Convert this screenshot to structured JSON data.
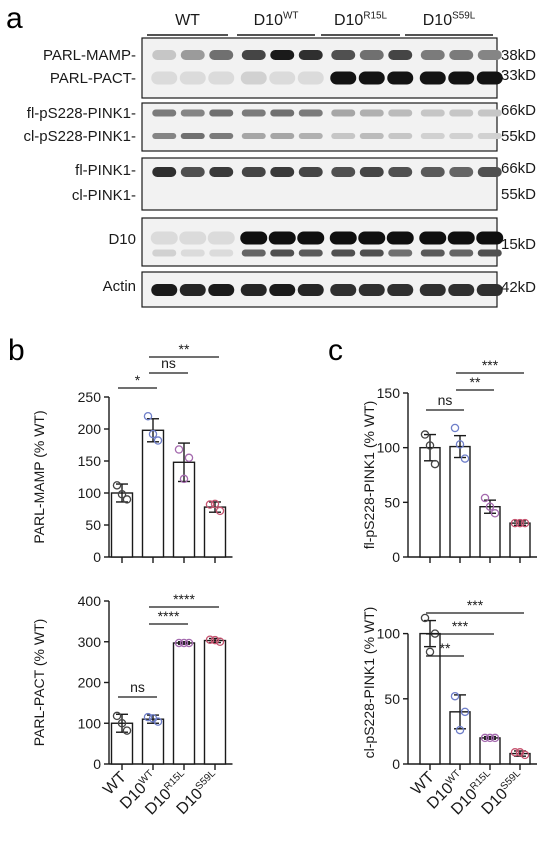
{
  "panel_letters": {
    "a": "a",
    "b": "b",
    "c": "c"
  },
  "blot": {
    "groups": [
      {
        "base": "WT",
        "sup": ""
      },
      {
        "base": "D10",
        "sup": "WT"
      },
      {
        "base": "D10",
        "sup": "R15L"
      },
      {
        "base": "D10",
        "sup": "S59L"
      }
    ],
    "rows": [
      {
        "left_labels": [
          "PARL-MAMP-",
          "PARL-PACT-"
        ],
        "right_labels": [
          "38kD",
          "33kD"
        ]
      },
      {
        "left_labels": [
          "fl-pS228-PINK1-",
          "cl-pS228-PINK1-"
        ],
        "right_labels": [
          "66kD",
          "55kD"
        ]
      },
      {
        "left_labels": [
          "fl-PINK1-",
          "cl-PINK1-"
        ],
        "right_labels": [
          "66kD",
          "55kD"
        ]
      },
      {
        "left_labels": [
          "D10"
        ],
        "right_labels": [
          "15kD"
        ]
      },
      {
        "left_labels": [
          "Actin"
        ],
        "right_labels": [
          "42kD"
        ]
      }
    ],
    "lane_intensity": {
      "mamp": [
        0.15,
        0.35,
        0.55,
        0.75,
        0.95,
        0.85,
        0.7,
        0.55,
        0.75,
        0.5,
        0.5,
        0.45
      ],
      "pact": [
        0.05,
        0.05,
        0.05,
        0.1,
        0.05,
        0.05,
        0.98,
        0.98,
        0.98,
        0.98,
        0.98,
        0.98
      ],
      "fl_ps228": [
        0.5,
        0.45,
        0.55,
        0.5,
        0.55,
        0.5,
        0.3,
        0.25,
        0.2,
        0.15,
        0.15,
        0.15
      ],
      "cl_ps228": [
        0.45,
        0.55,
        0.5,
        0.3,
        0.3,
        0.25,
        0.15,
        0.2,
        0.15,
        0.1,
        0.1,
        0.1
      ],
      "fl_pink1": [
        0.85,
        0.7,
        0.8,
        0.75,
        0.8,
        0.75,
        0.7,
        0.75,
        0.7,
        0.65,
        0.6,
        0.7
      ],
      "d10_upper": [
        0.05,
        0.05,
        0.05,
        1.0,
        1.0,
        1.0,
        1.0,
        1.0,
        1.0,
        1.0,
        1.0,
        1.0
      ],
      "d10_lower": [
        0.1,
        0.05,
        0.05,
        0.6,
        0.7,
        0.65,
        0.7,
        0.7,
        0.55,
        0.65,
        0.6,
        0.7
      ],
      "actin": [
        0.95,
        0.9,
        0.95,
        0.9,
        0.95,
        0.9,
        0.85,
        0.85,
        0.85,
        0.85,
        0.85,
        0.85
      ]
    }
  },
  "chart_data": [
    {
      "id": "parl-mamp",
      "type": "bar",
      "panel": "b",
      "ylabel": "PARL-MAMP (% WT)",
      "ylim": [
        0,
        250
      ],
      "yticks": [
        0,
        50,
        100,
        150,
        200,
        250
      ],
      "categories": [
        "WT",
        "D10WT",
        "D10R15L",
        "D10S59L"
      ],
      "values": [
        100,
        198,
        148,
        78
      ],
      "errors": [
        14,
        18,
        30,
        8
      ],
      "points": [
        [
          112,
          90,
          98
        ],
        [
          220,
          182,
          192
        ],
        [
          168,
          155,
          122
        ],
        [
          82,
          72,
          83
        ]
      ],
      "significance": [
        {
          "from": 0,
          "to": 1,
          "label": "*"
        },
        {
          "from": 1,
          "to": 2,
          "label": "ns"
        },
        {
          "from": 1,
          "to": 3,
          "label": "**"
        }
      ]
    },
    {
      "id": "parl-pact",
      "type": "bar",
      "panel": "b",
      "ylabel": "PARL-PACT (% WT)",
      "ylim": [
        0,
        400
      ],
      "yticks": [
        0,
        100,
        200,
        300,
        400
      ],
      "categories": [
        "WT",
        "D10WT",
        "D10R15L",
        "D10S59L"
      ],
      "values": [
        100,
        110,
        297,
        303
      ],
      "errors": [
        22,
        10,
        3,
        5
      ],
      "points": [
        [
          118,
          82,
          100
        ],
        [
          115,
          104,
          112
        ],
        [
          297,
          297,
          297
        ],
        [
          305,
          300,
          304
        ]
      ],
      "significance": [
        {
          "from": 0,
          "to": 1,
          "label": "ns"
        },
        {
          "from": 1,
          "to": 2,
          "label": "****"
        },
        {
          "from": 1,
          "to": 3,
          "label": "****"
        }
      ]
    },
    {
      "id": "fl-ps228",
      "type": "bar",
      "panel": "c",
      "ylabel": "fl-pS228-PINK1 (% WT)",
      "ylim": [
        0,
        150
      ],
      "yticks": [
        0,
        50,
        100,
        150
      ],
      "categories": [
        "WT",
        "D10WT",
        "D10R15L",
        "D10S59L"
      ],
      "values": [
        100,
        101,
        46,
        31
      ],
      "errors": [
        12,
        10,
        6,
        2
      ],
      "points": [
        [
          112,
          85,
          102
        ],
        [
          118,
          90,
          103
        ],
        [
          54,
          40,
          46
        ],
        [
          31,
          31,
          31
        ]
      ],
      "significance": [
        {
          "from": 0,
          "to": 1,
          "label": "ns"
        },
        {
          "from": 1,
          "to": 2,
          "label": "**"
        },
        {
          "from": 1,
          "to": 3,
          "label": "***"
        }
      ]
    },
    {
      "id": "cl-ps228",
      "type": "bar",
      "panel": "c",
      "ylabel": "cl-pS228-PINK1 (% WT)",
      "ylim": [
        0,
        125
      ],
      "yticks": [
        0,
        50,
        100
      ],
      "categories": [
        "WT",
        "D10WT",
        "D10R15L",
        "D10S59L"
      ],
      "values": [
        100,
        40,
        20,
        8
      ],
      "errors": [
        10,
        13,
        1,
        2
      ],
      "points": [
        [
          112,
          100,
          86
        ],
        [
          52,
          40,
          26
        ],
        [
          20,
          20,
          20
        ],
        [
          9,
          7,
          9
        ]
      ],
      "significance": [
        {
          "from": 0,
          "to": 1,
          "label": "**"
        },
        {
          "from": 0,
          "to": 2,
          "label": "***"
        },
        {
          "from": 0,
          "to": 3,
          "label": "***"
        }
      ]
    }
  ],
  "category_labels": [
    {
      "base": "WT",
      "sup": ""
    },
    {
      "base": "D10",
      "sup": "WT"
    },
    {
      "base": "D10",
      "sup": "R15L"
    },
    {
      "base": "D10",
      "sup": "S59L"
    }
  ],
  "colors": {
    "ink": "#1a1a1a",
    "point_WT": "#444444",
    "point_D10WT": "#6f7fc9",
    "point_D10R15L": "#a46aae",
    "point_D10S59L": "#c65470",
    "blot_background": "#f2f2f2"
  }
}
